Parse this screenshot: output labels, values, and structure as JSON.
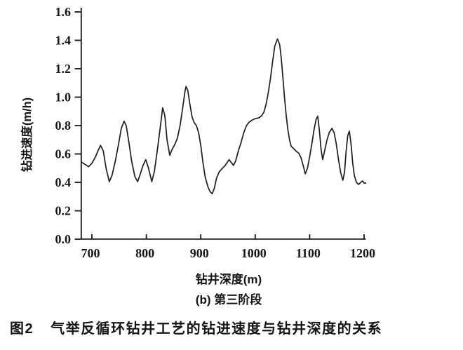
{
  "figure": {
    "caption_prefix": "图2",
    "caption_text": "气举反循环钻井工艺的钻进速度与钻井深度的关系"
  },
  "chart_data": {
    "type": "line",
    "title": "",
    "xlabel": "钻井深度(m)",
    "ylabel": "钻进速度(m/h)",
    "subcaption": "(b) 第三阶段",
    "xlim": [
      680,
      1210
    ],
    "ylim": [
      0.0,
      1.6
    ],
    "xticks": [
      "700",
      "800",
      "900",
      "1000",
      "1100",
      "1200"
    ],
    "yticks": [
      "0.0",
      "0.2",
      "0.4",
      "0.6",
      "0.8",
      "1.0",
      "1.2",
      "1.4",
      "1.6"
    ],
    "grid": false,
    "legend": "none",
    "line_color": "#1c1c1c",
    "axis_color": "#151515",
    "series": [
      {
        "name": "钻进速度",
        "x": [
          682,
          688,
          694,
          700,
          706,
          711,
          716,
          721,
          726,
          732,
          737,
          743,
          749,
          754,
          759,
          763,
          768,
          773,
          779,
          784,
          789,
          794,
          799,
          804,
          810,
          815,
          820,
          825,
          830,
          834,
          838,
          843,
          847,
          852,
          857,
          862,
          867,
          871,
          873,
          876,
          880,
          884,
          888,
          892,
          896,
          900,
          904,
          908,
          913,
          917,
          921,
          925,
          929,
          934,
          940,
          945,
          952,
          957,
          960,
          964,
          969,
          974,
          979,
          984,
          989,
          995,
          1001,
          1007,
          1012,
          1016,
          1020,
          1024,
          1028,
          1032,
          1036,
          1041,
          1045,
          1048,
          1051,
          1054,
          1057,
          1060,
          1063,
          1066,
          1070,
          1075,
          1080,
          1084,
          1088,
          1092,
          1096,
          1100,
          1104,
          1108,
          1112,
          1115,
          1118,
          1121,
          1124,
          1128,
          1132,
          1136,
          1141,
          1145,
          1149,
          1153,
          1157,
          1161,
          1164,
          1167,
          1170,
          1173,
          1176,
          1179,
          1182,
          1186,
          1190,
          1194,
          1197,
          1200,
          1203
        ],
        "values": [
          0.54,
          0.525,
          0.51,
          0.535,
          0.575,
          0.62,
          0.66,
          0.62,
          0.5,
          0.405,
          0.45,
          0.55,
          0.67,
          0.78,
          0.83,
          0.8,
          0.68,
          0.55,
          0.44,
          0.405,
          0.46,
          0.52,
          0.56,
          0.5,
          0.405,
          0.48,
          0.62,
          0.77,
          0.925,
          0.87,
          0.7,
          0.59,
          0.63,
          0.665,
          0.71,
          0.8,
          0.93,
          1.04,
          1.075,
          1.05,
          0.95,
          0.86,
          0.82,
          0.8,
          0.75,
          0.66,
          0.54,
          0.44,
          0.37,
          0.335,
          0.32,
          0.36,
          0.43,
          0.475,
          0.5,
          0.52,
          0.56,
          0.535,
          0.52,
          0.55,
          0.62,
          0.68,
          0.75,
          0.8,
          0.825,
          0.84,
          0.85,
          0.855,
          0.87,
          0.895,
          0.95,
          1.03,
          1.13,
          1.25,
          1.36,
          1.41,
          1.37,
          1.27,
          1.13,
          0.99,
          0.87,
          0.77,
          0.7,
          0.655,
          0.64,
          0.62,
          0.605,
          0.575,
          0.52,
          0.46,
          0.5,
          0.58,
          0.67,
          0.77,
          0.845,
          0.865,
          0.76,
          0.63,
          0.56,
          0.63,
          0.7,
          0.75,
          0.78,
          0.75,
          0.67,
          0.56,
          0.47,
          0.415,
          0.47,
          0.62,
          0.73,
          0.76,
          0.67,
          0.54,
          0.45,
          0.4,
          0.385,
          0.4,
          0.41,
          0.395,
          0.395
        ]
      }
    ]
  }
}
